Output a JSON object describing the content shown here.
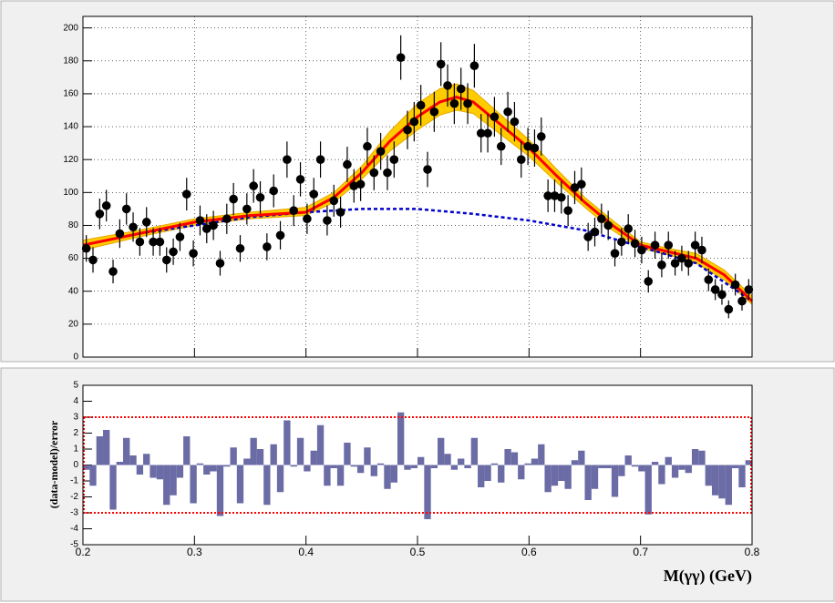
{
  "chart_data": [
    {
      "type": "scatter",
      "xlim": [
        0.2,
        0.8
      ],
      "ylim": [
        0,
        207
      ],
      "xticks": [
        0.2,
        0.3,
        0.4,
        0.5,
        0.6,
        0.7,
        0.8
      ],
      "yticks": [
        0,
        20,
        40,
        60,
        80,
        100,
        120,
        140,
        160,
        180,
        200
      ],
      "grid": true,
      "x_tick_labels": false,
      "series": [
        {
          "type": "band",
          "color": "#ffcc00",
          "x": [
            0.2,
            0.25,
            0.3,
            0.35,
            0.4,
            0.425,
            0.45,
            0.475,
            0.5,
            0.52,
            0.535,
            0.55,
            0.575,
            0.6,
            0.625,
            0.65,
            0.675,
            0.7,
            0.725,
            0.75,
            0.775,
            0.8
          ],
          "lower": [
            65,
            73,
            80,
            84,
            86,
            94,
            108,
            125,
            138,
            147,
            150,
            148,
            135,
            122,
            106,
            91,
            77,
            66,
            62,
            57,
            47,
            32
          ],
          "upper": [
            71,
            77,
            84,
            88,
            91,
            100,
            116,
            137,
            154,
            163,
            166,
            162,
            147,
            132,
            114,
            97,
            83,
            70,
            66,
            63,
            53,
            37
          ]
        },
        {
          "type": "line",
          "color": "#0000cc",
          "dashed": true,
          "x": [
            0.2,
            0.25,
            0.3,
            0.35,
            0.4,
            0.45,
            0.5,
            0.55,
            0.6,
            0.65,
            0.7,
            0.75,
            0.8
          ],
          "values": [
            68,
            75,
            80,
            85,
            88,
            90,
            90,
            87,
            83,
            77,
            67,
            57,
            34
          ]
        },
        {
          "type": "line",
          "color": "#ff0000",
          "x": [
            0.2,
            0.25,
            0.3,
            0.35,
            0.4,
            0.425,
            0.45,
            0.475,
            0.5,
            0.52,
            0.535,
            0.55,
            0.575,
            0.6,
            0.625,
            0.65,
            0.675,
            0.7,
            0.725,
            0.75,
            0.775,
            0.8
          ],
          "values": [
            68,
            75,
            82,
            86,
            88,
            97,
            112,
            131,
            146,
            155,
            158,
            155,
            141,
            127,
            110,
            94,
            80,
            68,
            64,
            60,
            50,
            34
          ]
        },
        {
          "type": "points",
          "color": "#000000",
          "x": [
            0.203,
            0.209,
            0.215,
            0.221,
            0.227,
            0.233,
            0.239,
            0.245,
            0.251,
            0.257,
            0.263,
            0.269,
            0.275,
            0.281,
            0.287,
            0.293,
            0.299,
            0.305,
            0.311,
            0.317,
            0.323,
            0.329,
            0.335,
            0.341,
            0.347,
            0.353,
            0.359,
            0.365,
            0.371,
            0.377,
            0.383,
            0.389,
            0.395,
            0.401,
            0.407,
            0.413,
            0.419,
            0.425,
            0.431,
            0.437,
            0.443,
            0.449,
            0.455,
            0.461,
            0.467,
            0.473,
            0.479,
            0.485,
            0.491,
            0.497,
            0.503,
            0.509,
            0.515,
            0.521,
            0.527,
            0.533,
            0.539,
            0.545,
            0.551,
            0.557,
            0.563,
            0.569,
            0.575,
            0.581,
            0.587,
            0.593,
            0.599,
            0.605,
            0.611,
            0.617,
            0.623,
            0.629,
            0.635,
            0.641,
            0.647,
            0.653,
            0.659,
            0.665,
            0.671,
            0.677,
            0.683,
            0.689,
            0.695,
            0.701,
            0.707,
            0.713,
            0.719,
            0.725,
            0.731,
            0.737,
            0.743,
            0.749,
            0.755,
            0.761,
            0.767,
            0.773,
            0.779,
            0.785,
            0.791,
            0.797
          ],
          "values": [
            66,
            59,
            87,
            92,
            52,
            75,
            90,
            79,
            70,
            82,
            70,
            70,
            59,
            64,
            73,
            99,
            63,
            83,
            78,
            80,
            57,
            84,
            96,
            66,
            90,
            104,
            97,
            67,
            101,
            74,
            120,
            89,
            108,
            84,
            99,
            120,
            83,
            95,
            88,
            117,
            104,
            105,
            128,
            112,
            125,
            112,
            120,
            182,
            138,
            143,
            153,
            114,
            149,
            178,
            165,
            154,
            163,
            154,
            177,
            136,
            136,
            146,
            128,
            149,
            143,
            120,
            128,
            127,
            134,
            98,
            98,
            97,
            89,
            103,
            105,
            73,
            76,
            84,
            80,
            63,
            70,
            78,
            69,
            65,
            46,
            68,
            56,
            68,
            57,
            60,
            57,
            68,
            65,
            47,
            41,
            38,
            29,
            44,
            34,
            41
          ],
          "errors": [
            8.1,
            7.7,
            9.3,
            9.6,
            7.2,
            8.7,
            9.5,
            8.9,
            8.4,
            9.1,
            8.4,
            8.4,
            7.7,
            8,
            8.5,
            9.9,
            7.9,
            9.1,
            8.8,
            8.9,
            7.5,
            9.2,
            9.8,
            8.1,
            9.5,
            10.2,
            9.8,
            8.2,
            10,
            8.6,
            11,
            9.4,
            10.4,
            9.2,
            9.9,
            11,
            9.1,
            9.7,
            9.4,
            10.8,
            10.2,
            10.2,
            11.3,
            10.6,
            11.2,
            10.6,
            11,
            13.5,
            11.7,
            12,
            12.4,
            10.7,
            12.2,
            13.3,
            12.8,
            12.4,
            12.8,
            12.4,
            13.3,
            11.7,
            11.7,
            12.1,
            11.3,
            12.2,
            12,
            11,
            11.3,
            11.3,
            11.6,
            9.9,
            9.9,
            9.8,
            9.4,
            10.1,
            10.2,
            8.5,
            8.7,
            9.2,
            8.9,
            7.9,
            8.4,
            8.8,
            8.3,
            8.1,
            6.8,
            8.2,
            7.5,
            8.2,
            7.5,
            7.7,
            7.5,
            8.2,
            8.1,
            6.9,
            6.4,
            6.2,
            5.4,
            6.6,
            5.8,
            6.4
          ]
        }
      ]
    },
    {
      "type": "histogram",
      "xlabel": "M(γγ) (GeV)",
      "ylabel": "(data-model)/error",
      "xlim": [
        0.2,
        0.8
      ],
      "ylim": [
        -5,
        5
      ],
      "xticks": [
        0.2,
        0.3,
        0.4,
        0.5,
        0.6,
        0.7,
        0.8
      ],
      "yticks": [
        -5,
        -4,
        -3,
        -2,
        -1,
        0,
        1,
        2,
        3,
        4,
        5
      ],
      "grid": false,
      "x_tick_labels": true,
      "color": "#6b6ba6",
      "reference_lines": [
        -3,
        3
      ],
      "reference_color": "#ff0000",
      "bins": [
        0.2,
        0.206,
        0.212,
        0.218,
        0.224,
        0.23,
        0.236,
        0.242,
        0.248,
        0.254,
        0.26,
        0.266,
        0.272,
        0.278,
        0.284,
        0.29,
        0.296,
        0.302,
        0.308,
        0.314,
        0.32,
        0.326,
        0.332,
        0.338,
        0.344,
        0.35,
        0.356,
        0.362,
        0.368,
        0.374,
        0.38,
        0.386,
        0.392,
        0.398,
        0.404,
        0.41,
        0.416,
        0.422,
        0.428,
        0.434,
        0.44,
        0.446,
        0.452,
        0.458,
        0.464,
        0.47,
        0.476,
        0.482,
        0.488,
        0.494,
        0.5,
        0.506,
        0.512,
        0.518,
        0.524,
        0.53,
        0.536,
        0.542,
        0.548,
        0.554,
        0.56,
        0.566,
        0.572,
        0.578,
        0.584,
        0.59,
        0.596,
        0.602,
        0.608,
        0.614,
        0.62,
        0.626,
        0.632,
        0.638,
        0.644,
        0.65,
        0.656,
        0.662,
        0.668,
        0.674,
        0.68,
        0.686,
        0.692,
        0.698,
        0.704,
        0.71,
        0.716,
        0.722,
        0.728,
        0.734,
        0.74,
        0.746,
        0.752,
        0.758,
        0.764,
        0.77,
        0.776,
        0.782,
        0.788,
        0.794,
        0.8
      ],
      "values": [
        -0.3,
        -1.3,
        1.8,
        2.2,
        -2.8,
        0.2,
        1.7,
        0.6,
        -0.6,
        0.7,
        -0.8,
        -0.9,
        -2.5,
        -1.9,
        -0.8,
        1.8,
        -2.4,
        0.1,
        -0.6,
        -0.4,
        -3.2,
        -0.1,
        1.1,
        -2.4,
        0.4,
        1.7,
        1.0,
        -2.5,
        1.3,
        -1.7,
        2.8,
        -0.1,
        1.7,
        -0.4,
        0.9,
        2.5,
        -1.3,
        -0.2,
        -1.3,
        1.4,
        -0.1,
        -0.5,
        1.1,
        -0.7,
        0.1,
        -1.5,
        -1.1,
        3.3,
        -0.3,
        -0.2,
        0.5,
        -3.4,
        -0.2,
        1.7,
        0.7,
        -0.3,
        0.4,
        -0.2,
        1.7,
        -1.4,
        -1.0,
        0.1,
        -1.1,
        1.0,
        0.8,
        -0.9,
        0.1,
        0.4,
        1.3,
        -1.7,
        -1.3,
        -1.0,
        -1.5,
        0.3,
        0.9,
        -2.2,
        -1.5,
        -0.2,
        -0.2,
        -2.0,
        -0.7,
        0.6,
        -0.1,
        -0.4,
        -3.1,
        0.2,
        -1.2,
        0.5,
        -0.8,
        -0.3,
        -0.5,
        1.0,
        0.9,
        -1.3,
        -1.9,
        -2.1,
        -2.5,
        -0.2,
        -1.4,
        0.3
      ]
    }
  ]
}
